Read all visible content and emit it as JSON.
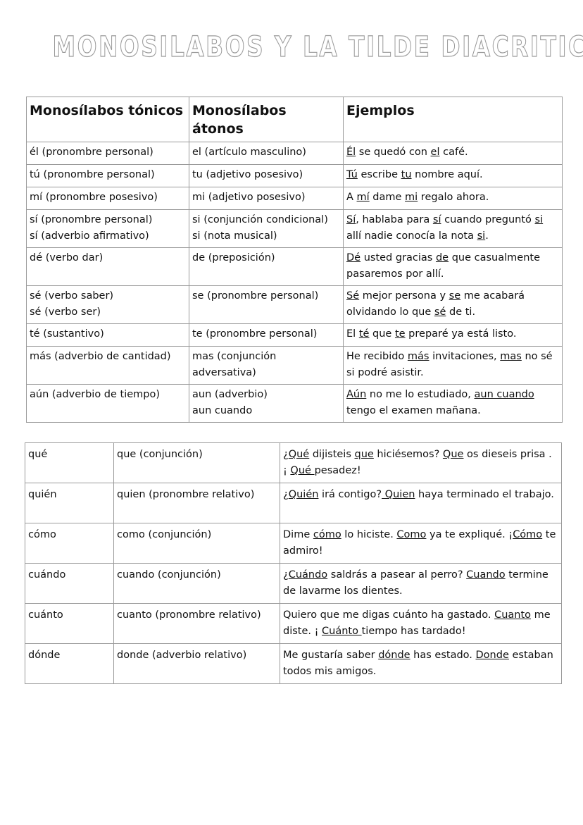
{
  "title": "MONOSILABOS Y LA TILDE DIACRITICA",
  "table1": {
    "headers": [
      "Monosílabos tónicos",
      "Monosílabos átonos",
      "Ejemplos"
    ],
    "rows": [
      {
        "tonico": [
          "él (pronombre personal)"
        ],
        "atono": [
          "el (artículo masculino)"
        ],
        "ejemplo": [
          {
            "t": "Él",
            "u": true
          },
          {
            "t": " se quedó con "
          },
          {
            "t": "el",
            "u": true
          },
          {
            "t": " café."
          }
        ]
      },
      {
        "tonico": [
          "tú (pronombre personal)"
        ],
        "atono": [
          "tu (adjetivo posesivo)"
        ],
        "ejemplo": [
          {
            "t": "Tú",
            "u": true
          },
          {
            "t": " escribe "
          },
          {
            "t": "tu",
            "u": true
          },
          {
            "t": " nombre aquí."
          }
        ]
      },
      {
        "tonico": [
          "mí (pronombre posesivo)"
        ],
        "atono": [
          "mi (adjetivo posesivo)"
        ],
        "ejemplo": [
          {
            "t": "A "
          },
          {
            "t": "mí",
            "u": true
          },
          {
            "t": " dame "
          },
          {
            "t": "mi",
            "u": true
          },
          {
            "t": " regalo ahora."
          }
        ]
      },
      {
        "tonico": [
          "sí (pronombre personal)",
          "sí (adverbio afirmativo)"
        ],
        "atono": [
          "si (conjunción condicional)",
          "si (nota musical)"
        ],
        "ejemplo": [
          {
            "t": "Sí",
            "u": true
          },
          {
            "t": ", hablaba para "
          },
          {
            "t": "sí",
            "u": true
          },
          {
            "t": " cuando preguntó "
          },
          {
            "t": "si",
            "u": true
          },
          {
            "t": " allí nadie conocía la nota "
          },
          {
            "t": "si",
            "u": true
          },
          {
            "t": "."
          }
        ]
      },
      {
        "tonico": [
          "dé (verbo dar)"
        ],
        "atono": [
          "de (preposición)"
        ],
        "ejemplo": [
          {
            "t": "Dé",
            "u": true
          },
          {
            "t": " usted gracias "
          },
          {
            "t": "de",
            "u": true
          },
          {
            "t": " que casualmente  pasaremos por allí."
          }
        ]
      },
      {
        "tonico": [
          "sé (verbo saber)",
          "sé (verbo ser)"
        ],
        "atono": [
          "se (pronombre personal)"
        ],
        "ejemplo": [
          {
            "t": "Sé",
            "u": true
          },
          {
            "t": " mejor persona y "
          },
          {
            "t": "se",
            "u": true
          },
          {
            "t": " me acabará olvidando lo que "
          },
          {
            "t": "sé",
            "u": true
          },
          {
            "t": " de ti."
          }
        ]
      },
      {
        "tonico": [
          "té (sustantivo)"
        ],
        "atono": [
          "te (pronombre personal)"
        ],
        "ejemplo": [
          {
            "t": "El "
          },
          {
            "t": "té",
            "u": true
          },
          {
            "t": " que "
          },
          {
            "t": "te",
            "u": true
          },
          {
            "t": " preparé ya está listo."
          }
        ]
      },
      {
        "tonico": [
          "más (adverbio de cantidad)"
        ],
        "atono": [
          "mas (conjunción adversativa)"
        ],
        "ejemplo": [
          {
            "t": "He recibido "
          },
          {
            "t": "más",
            "u": true
          },
          {
            "t": " invitaciones, "
          },
          {
            "t": "mas",
            "u": true
          },
          {
            "t": " no sé si podré asistir."
          }
        ]
      },
      {
        "tonico": [
          "aún (adverbio de tiempo)"
        ],
        "atono": [
          "aun (adverbio)",
          "aun cuando"
        ],
        "ejemplo": [
          {
            "t": "Aún",
            "u": true
          },
          {
            "t": " no me lo estudiado, "
          },
          {
            "t": "aun cuando",
            "u": true
          },
          {
            "t": " tengo el examen mañana."
          }
        ]
      }
    ]
  },
  "table2": {
    "rows": [
      {
        "tonico": [
          "qué"
        ],
        "atono": [
          "que (conjunción)"
        ],
        "ejemplo": [
          {
            "t": "¿"
          },
          {
            "t": "Qué",
            "u": true
          },
          {
            "t": " dijisteis "
          },
          {
            "t": "que",
            "u": true
          },
          {
            "t": " hiciésemos? "
          },
          {
            "t": "Que",
            "u": true
          },
          {
            "t": " os dieseis prisa . ¡ "
          },
          {
            "t": "Qué ",
            "u": true
          },
          {
            "t": "pesadez!"
          }
        ]
      },
      {
        "tonico": [
          "quién"
        ],
        "atono": [
          "quien (pronombre relativo)"
        ],
        "ejemplo": [
          {
            "t": "¿"
          },
          {
            "t": "Quién",
            "u": true
          },
          {
            "t": " irá contigo?"
          },
          {
            "t": " Quien",
            "u": true
          },
          {
            "t": " haya terminado el trabajo."
          }
        ]
      },
      {
        "tonico": [
          "cómo"
        ],
        "atono": [
          "como (conjunción)"
        ],
        "ejemplo": [
          {
            "t": "Dime "
          },
          {
            "t": "cómo",
            "u": true
          },
          {
            "t": " lo hiciste. "
          },
          {
            "t": "Como",
            "u": true
          },
          {
            "t": " ya te expliqué. ¡"
          },
          {
            "t": "Cómo",
            "u": true
          },
          {
            "t": " te admiro!"
          }
        ]
      },
      {
        "tonico": [
          "cuándo"
        ],
        "atono": [
          "cuando (conjunción)"
        ],
        "ejemplo": [
          {
            "t": "¿"
          },
          {
            "t": "Cuándo",
            "u": true
          },
          {
            "t": " saldrás a pasear al perro? "
          },
          {
            "t": "Cuando",
            "u": true
          },
          {
            "t": " termine de lavarme los dientes."
          }
        ]
      },
      {
        "tonico": [
          "cuánto"
        ],
        "atono": [
          "cuanto (pronombre relativo)"
        ],
        "ejemplo": [
          {
            "t": "Quiero que me digas cuánto ha gastado. "
          },
          {
            "t": "Cuanto",
            "u": true
          },
          {
            "t": " me diste. ¡ "
          },
          {
            "t": "Cuánto ",
            "u": true
          },
          {
            "t": "tiempo has tardado!"
          }
        ]
      },
      {
        "tonico": [
          "dónde"
        ],
        "atono": [
          "donde (adverbio relativo)"
        ],
        "ejemplo": [
          {
            "t": "Me gustaría saber "
          },
          {
            "t": "dónde",
            "u": true
          },
          {
            "t": " has estado. "
          },
          {
            "t": "Donde",
            "u": true
          },
          {
            "t": " estaban todos mis amigos."
          }
        ]
      }
    ]
  }
}
